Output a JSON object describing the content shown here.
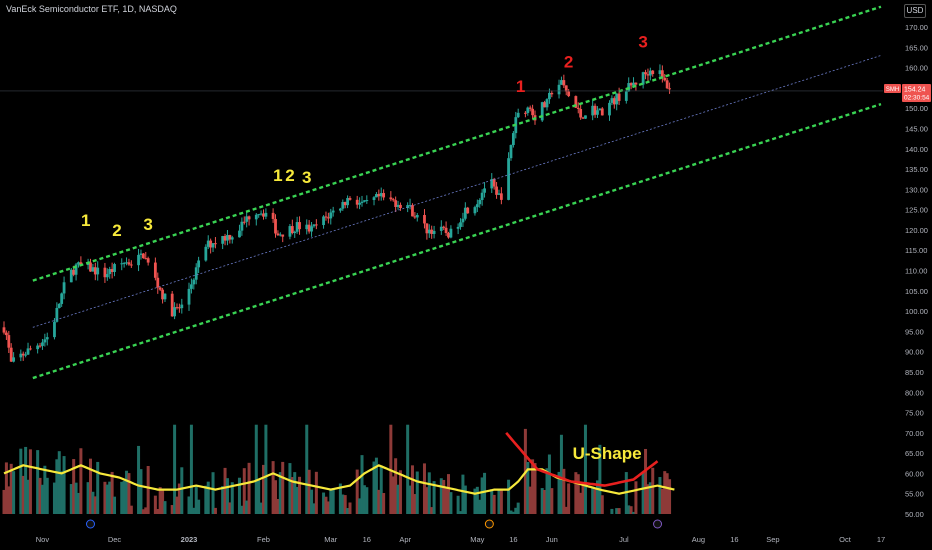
{
  "header": {
    "title": "VanEck Semiconductor ETF, 1D, NASDAQ",
    "currency": "USD"
  },
  "price_badge": {
    "symbol": "SMH",
    "price": "154.24",
    "time": "02:30:54"
  },
  "colors": {
    "up": "#26a69a",
    "down": "#ef5350",
    "channel": "#39d353",
    "midline": "#6b7cc9",
    "volume_ma": "#f7e93b",
    "u_shape": "#e8201f",
    "label_yellow": "#f7e93b",
    "label_red": "#e8201f"
  },
  "chart_data": {
    "type": "candlestick",
    "symbol": "SMH",
    "interval": "1D",
    "exchange": "NASDAQ",
    "price_axis": {
      "ticks": [
        170,
        165,
        160,
        155,
        150,
        145,
        140,
        135,
        130,
        125,
        120,
        115,
        110,
        105,
        100,
        95,
        90,
        85,
        80,
        75,
        70,
        65,
        60,
        55,
        50
      ],
      "labels": [
        "170.00",
        "165.00",
        "160.00",
        "155.00",
        "150.00",
        "145.00",
        "140.00",
        "135.00",
        "130.00",
        "125.00",
        "120.00",
        "115.00",
        "110.00",
        "105.00",
        "100.00",
        "95.00",
        "90.00",
        "85.00",
        "80.00",
        "75.00",
        "70.00",
        "65.00",
        "60.00",
        "55.00",
        "50.00"
      ],
      "ylim": [
        47,
        175
      ]
    },
    "time_axis": {
      "labels": [
        "Nov",
        "Dec",
        "2023",
        "Feb",
        "Mar",
        "16",
        "Apr",
        "May",
        "16",
        "Jun",
        "Jul",
        "Aug",
        "16",
        "Sep",
        "Oct",
        "17"
      ],
      "days": [
        16,
        46,
        77,
        108,
        136,
        151,
        167,
        197,
        212,
        228,
        258,
        289,
        304,
        320,
        350,
        365
      ]
    },
    "price_path": {
      "days": [
        0,
        1,
        3,
        7,
        12,
        19,
        26,
        30,
        34,
        42,
        50,
        54,
        58,
        66,
        70,
        74,
        80,
        84,
        90,
        96,
        104,
        110,
        114,
        122,
        128,
        136,
        144,
        150,
        156,
        162,
        168,
        172,
        176,
        180,
        186,
        192,
        197,
        202,
        205,
        208,
        213,
        216,
        219,
        221,
        223,
        226,
        229,
        232,
        236,
        240,
        244,
        248,
        252,
        256,
        260,
        264,
        268,
        272,
        274,
        277,
        279
      ],
      "close": [
        96,
        94,
        87,
        89,
        91,
        94,
        108,
        111,
        111,
        109,
        112,
        112,
        114,
        104,
        100,
        101,
        110,
        116,
        118,
        119,
        125,
        124,
        119,
        121,
        120,
        124,
        128,
        126,
        128,
        127,
        126,
        123,
        120,
        120,
        119,
        125,
        127,
        133,
        128,
        129,
        148,
        150,
        150,
        148,
        150,
        151,
        156,
        156,
        152,
        148,
        150,
        149,
        151,
        153,
        155,
        157,
        159,
        160,
        157,
        155,
        154.24
      ]
    },
    "channel": {
      "upper": {
        "from": {
          "day": 12,
          "price": 107.5
        },
        "to": {
          "day": 365,
          "price": 175.0
        }
      },
      "middle": {
        "from": {
          "day": 12,
          "price": 96.0
        },
        "to": {
          "day": 365,
          "price": 163.0
        }
      },
      "lower": {
        "from": {
          "day": 12,
          "price": 83.5
        },
        "to": {
          "day": 365,
          "price": 151.0
        }
      }
    },
    "last_price": 154.24,
    "volume_ma": {
      "days": [
        0,
        8,
        16,
        24,
        32,
        40,
        48,
        56,
        64,
        72,
        80,
        88,
        96,
        104,
        112,
        120,
        128,
        136,
        144,
        150,
        156,
        164,
        172,
        180,
        188,
        196,
        204,
        210,
        214,
        218,
        224,
        230,
        236,
        242,
        248,
        256,
        264,
        272,
        279
      ],
      "values": [
        60,
        62,
        61,
        60,
        62,
        60,
        59,
        57,
        56,
        56,
        57,
        56,
        57,
        58,
        60,
        58,
        57,
        56,
        57,
        60,
        62,
        60,
        58,
        57,
        56,
        55,
        56,
        56,
        58,
        61,
        61,
        59,
        58,
        57,
        56,
        55,
        56,
        57,
        56
      ]
    },
    "annotations": [
      {
        "text": "1",
        "day": 34,
        "price": 121,
        "color": "yellow"
      },
      {
        "text": "2",
        "day": 47,
        "price": 118.5,
        "color": "yellow"
      },
      {
        "text": "3",
        "day": 60,
        "price": 120,
        "color": "yellow"
      },
      {
        "text": "1",
        "day": 114,
        "price": 132,
        "color": "yellow"
      },
      {
        "text": "2",
        "day": 119,
        "price": 132,
        "color": "yellow"
      },
      {
        "text": "3",
        "day": 126,
        "price": 131.5,
        "color": "yellow"
      },
      {
        "text": "1",
        "day": 215,
        "price": 154,
        "color": "red"
      },
      {
        "text": "2",
        "day": 235,
        "price": 160,
        "color": "red"
      },
      {
        "text": "3",
        "day": 266,
        "price": 165,
        "color": "red"
      },
      {
        "text": "U-Shape",
        "day": 251,
        "price": 63.5,
        "color": "yellow"
      }
    ],
    "u_shape": {
      "days": [
        209,
        222,
        236,
        250,
        262,
        272
      ],
      "values": [
        70,
        61,
        58,
        57,
        58.5,
        63
      ]
    }
  }
}
